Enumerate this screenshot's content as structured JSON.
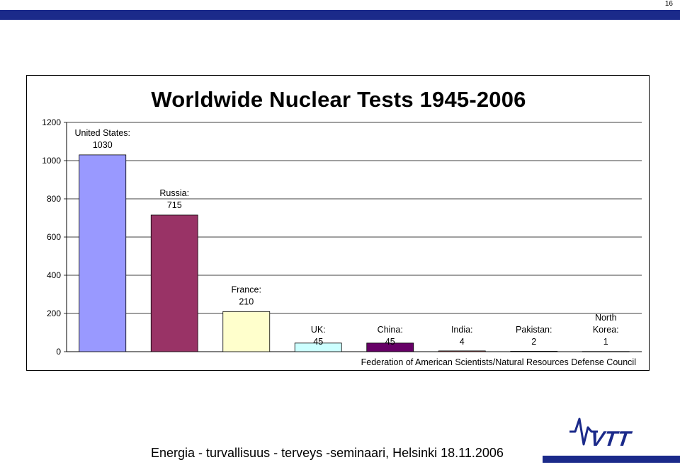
{
  "page": {
    "number": "16",
    "footer": "Energia - turvallisuus - terveys -seminaari, Helsinki 18.11.2006",
    "logo": "VTT",
    "brand_color": "#1b2a8a"
  },
  "chart_data": {
    "type": "bar",
    "title": "Worldwide Nuclear Tests 1945-2006",
    "source": "Federation of American Scientists/Natural Resources Defense Council",
    "xlabel": "",
    "ylabel": "",
    "ylim": [
      0,
      1200
    ],
    "yticks": [
      0,
      200,
      400,
      600,
      800,
      1000,
      1200
    ],
    "grid": true,
    "legend": "none",
    "categories": [
      "United States",
      "Russia",
      "France",
      "UK",
      "China",
      "India",
      "Pakistan",
      "North Korea"
    ],
    "values": [
      1030,
      715,
      210,
      45,
      45,
      4,
      2,
      1
    ],
    "labels": [
      [
        "United States:",
        "1030"
      ],
      [
        "Russia:",
        "715"
      ],
      [
        "France:",
        "210"
      ],
      [
        "UK:",
        "45"
      ],
      [
        "China:",
        "45"
      ],
      [
        "India:",
        "4"
      ],
      [
        "Pakistan:",
        "2"
      ],
      [
        "North",
        "Korea:",
        "1"
      ]
    ],
    "colors": [
      "#9999ff",
      "#993366",
      "#ffffcc",
      "#ccffff",
      "#660066",
      "#ff8080",
      "#0066cc",
      "#ccccff"
    ]
  }
}
